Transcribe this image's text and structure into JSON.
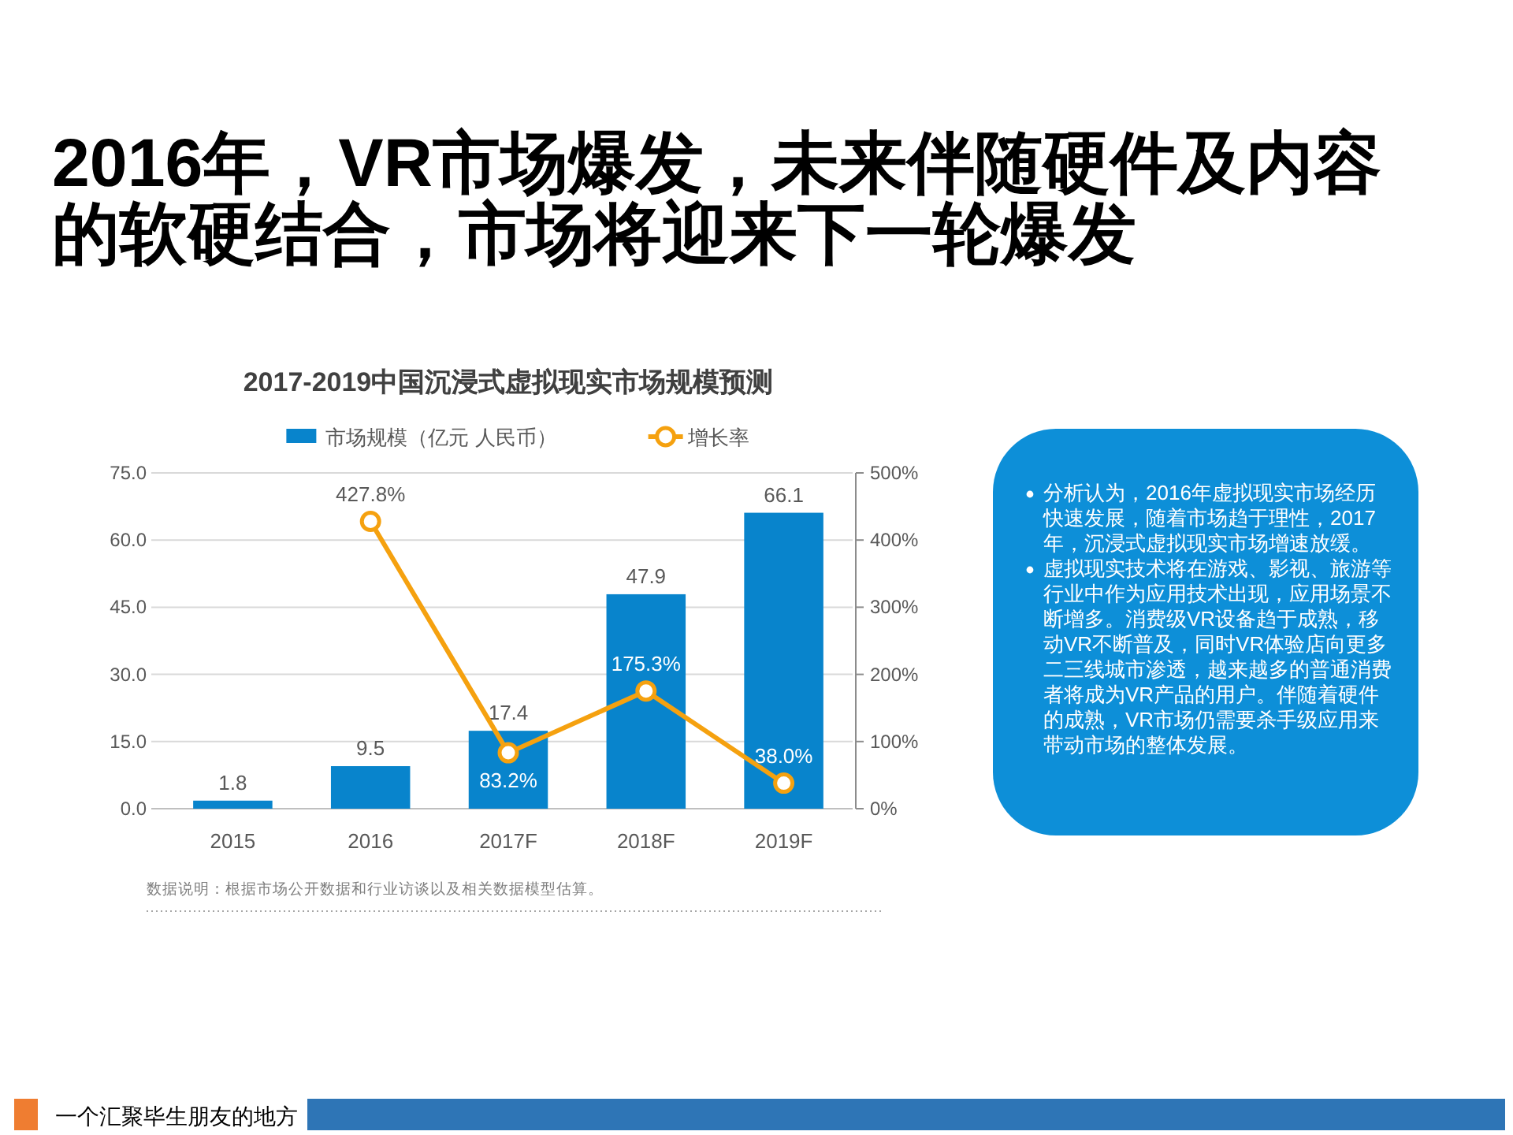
{
  "chart_data": [
    {
      "type": "bar",
      "title": "2016年，VR市场爆发，未来伴随硬件及内容的软硬结合，市场将迎来下一轮爆发",
      "subtitle": "2017-2019中国沉浸式虚拟现实市场规模预测",
      "categories": [
        "2015",
        "2016",
        "2017F",
        "2018F",
        "2019F"
      ],
      "series": [
        {
          "name": "市场规模（亿元 人民币）",
          "type": "bar",
          "color": "#0884cc",
          "values": [
            1.8,
            9.5,
            17.4,
            47.9,
            66.1
          ],
          "value_labels": [
            "1.8",
            "9.5",
            "17.4",
            "47.9",
            "66.1"
          ]
        },
        {
          "name": "增长率",
          "type": "line",
          "axis": "y2",
          "color": "#f5a10f",
          "values": [
            null,
            427.8,
            83.2,
            175.3,
            38.0
          ],
          "value_labels": [
            null,
            "427.8%",
            "83.2%",
            "175.3%",
            "38.0%"
          ]
        }
      ],
      "ylim": [
        0,
        75
      ],
      "yticks": [
        {
          "value": 0,
          "label": "0.0"
        },
        {
          "value": 15,
          "label": "15.0"
        },
        {
          "value": 30,
          "label": "30.0"
        },
        {
          "value": 45,
          "label": "45.0"
        },
        {
          "value": 60,
          "label": "60.0"
        },
        {
          "value": 75,
          "label": "75.0"
        }
      ],
      "y2lim": [
        0,
        500
      ],
      "y2ticks": [
        {
          "value": 0,
          "label": "0%"
        },
        {
          "value": 100,
          "label": "100%"
        },
        {
          "value": 200,
          "label": "200%"
        },
        {
          "value": 300,
          "label": "300%"
        },
        {
          "value": 400,
          "label": "400%"
        },
        {
          "value": 500,
          "label": "500%"
        }
      ],
      "grid": "y",
      "legend": "top",
      "marker": "circle",
      "annotations": [
        "数据说明：根据市场公开数据和行业访谈以及相关数据模型估算。",
        "一个汇聚毕生朋友的地方"
      ]
    },
    {
      "type": "other",
      "annotations": [
        "分析认为，2016年虚拟现实市场经历快速发展，随着市场趋于理性，2017年，沉浸式虚拟现实市场增速放缓。",
        "虚拟现实技术将在游戏、影视、旅游等行业中作为应用技术出现，应用场景不断增多。消费级VR设备趋于成熟，移动VR不断普及，同时VR体验店向更多二三线城市渗透，越来越多的普通消费者将成为VR产品的用户。伴随着硬件的成熟，VR市场仍需要杀手级应用来带动市场的整体发展。"
      ]
    }
  ]
}
